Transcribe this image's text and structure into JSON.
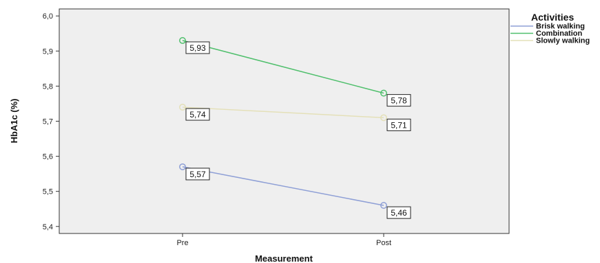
{
  "chart_data": {
    "type": "line",
    "title": "",
    "xlabel": "Measurement",
    "ylabel": "HbA1c (%)",
    "categories": [
      "Pre",
      "Post"
    ],
    "ylim": [
      5.38,
      6.02
    ],
    "yticks": [
      "5,4",
      "5,5",
      "5,6",
      "5,7",
      "5,8",
      "5,9",
      "6,0"
    ],
    "grid": false,
    "legend": {
      "title": "Activities",
      "placement": "right"
    },
    "series": [
      {
        "name": "Brisk walking",
        "color": "#8e9fd6",
        "values": [
          5.57,
          5.46
        ],
        "labels": [
          "5,57",
          "5,46"
        ]
      },
      {
        "name": "Combination",
        "color": "#4fbf6c",
        "values": [
          5.93,
          5.78
        ],
        "labels": [
          "5,93",
          "5,78"
        ]
      },
      {
        "name": "Slowly walking",
        "color": "#e4e0b8",
        "values": [
          5.74,
          5.71
        ],
        "labels": [
          "5,74",
          "5,71"
        ]
      }
    ],
    "plot_background": "#efefef"
  }
}
